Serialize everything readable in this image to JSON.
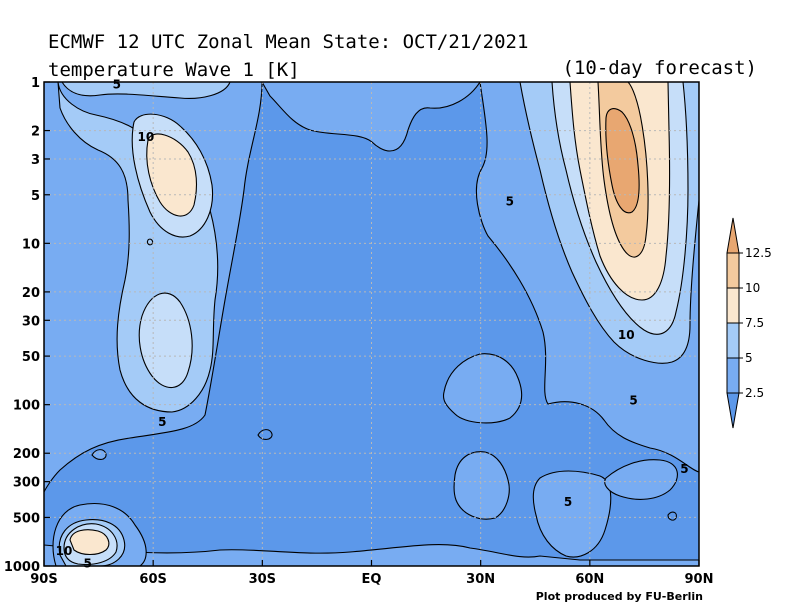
{
  "chart_data": {
    "type": "contour",
    "title": "ECMWF 12 UTC Zonal Mean State: OCT/21/2021",
    "subtitle": "temperature Wave 1 [K]",
    "forecast_note": "(10-day forecast)",
    "credit": "Plot produced by FU-Berlin",
    "x_axis": {
      "scale": "linear",
      "range": [
        -90,
        90
      ],
      "ticks": [
        {
          "value": -90,
          "label": "90S"
        },
        {
          "value": -60,
          "label": "60S"
        },
        {
          "value": -30,
          "label": "30S"
        },
        {
          "value": 0,
          "label": "EQ"
        },
        {
          "value": 30,
          "label": "30N"
        },
        {
          "value": 60,
          "label": "60N"
        },
        {
          "value": 90,
          "label": "90N"
        }
      ]
    },
    "y_axis": {
      "scale": "log",
      "inverted": true,
      "range": [
        1000,
        1
      ],
      "ticks": [
        {
          "value": 1,
          "label": "1"
        },
        {
          "value": 2,
          "label": "2"
        },
        {
          "value": 3,
          "label": "3"
        },
        {
          "value": 5,
          "label": "5"
        },
        {
          "value": 10,
          "label": "10"
        },
        {
          "value": 20,
          "label": "20"
        },
        {
          "value": 30,
          "label": "30"
        },
        {
          "value": 50,
          "label": "50"
        },
        {
          "value": 100,
          "label": "100"
        },
        {
          "value": 200,
          "label": "200"
        },
        {
          "value": 300,
          "label": "300"
        },
        {
          "value": 500,
          "label": "500"
        },
        {
          "value": 1000,
          "label": "1000"
        }
      ]
    },
    "grid": true,
    "legend": {
      "placement": "right",
      "levels": [
        {
          "value": 12.5,
          "label": "12.5"
        },
        {
          "value": 10,
          "label": "10"
        },
        {
          "value": 7.5,
          "label": "7.5"
        },
        {
          "value": 5,
          "label": "5"
        },
        {
          "value": 2.5,
          "label": "2.5"
        }
      ],
      "colors": [
        "#5c98ea",
        "#78acf2",
        "#a4cbf7",
        "#fae7cf",
        "#f3ca9e",
        "#e8a771"
      ]
    },
    "contour_labels": [
      {
        "text": "5",
        "lat": -70,
        "p": 1.04
      },
      {
        "text": "10",
        "lat": -62,
        "p": 2.2
      },
      {
        "text": "5",
        "lat": -57.5,
        "p": 128
      },
      {
        "text": "10",
        "lat": -84.5,
        "p": 810
      },
      {
        "text": "5",
        "lat": -78,
        "p": 965
      },
      {
        "text": "5",
        "lat": 38,
        "p": 5.5
      },
      {
        "text": "10",
        "lat": 70,
        "p": 37
      },
      {
        "text": "5",
        "lat": 72,
        "p": 94
      },
      {
        "text": "5",
        "lat": 86,
        "p": 250
      },
      {
        "text": "5",
        "lat": 54,
        "p": 400
      }
    ],
    "regions": [
      {
        "name": "60N upper-stratospheric maximum",
        "lat_range": [
          52,
          85
        ],
        "p_range": [
          1,
          90
        ],
        "peak_level": 12.5
      },
      {
        "name": "55S upper-stratospheric maximum",
        "lat_range": [
          -67,
          -47
        ],
        "p_range": [
          1.5,
          12
        ],
        "peak_level": 10
      },
      {
        "name": "60S lower-stratospheric maximum",
        "lat_range": [
          -65,
          -52
        ],
        "p_range": [
          22,
          110
        ],
        "peak_level": 7.5
      },
      {
        "name": "80S near-surface maximum",
        "lat_range": [
          -90,
          -70
        ],
        "p_range": [
          480,
          1000
        ],
        "peak_level": 10
      }
    ]
  }
}
